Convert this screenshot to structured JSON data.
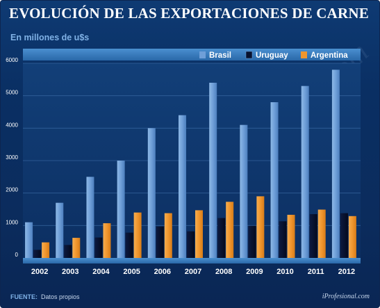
{
  "header": {
    "title": "EVOLUCIÓN DE LAS EXPORTACIONES DE CARNE",
    "subtitle": "En millones de u$s"
  },
  "footer": {
    "source_label": "FUENTE:",
    "source_text": "Datos propios",
    "brand": "iProfesional.com"
  },
  "watermark": "iProfesional.com",
  "colors": {
    "background": "#0b2c5d",
    "brasil": "#6f9fd8",
    "uruguay": "#07112e",
    "argentina": "#f0962e",
    "legend_bar": "#2a6cae",
    "axis_band": "#3a7fc0"
  },
  "chart_data": {
    "type": "bar",
    "title": "EVOLUCIÓN DE LAS EXPORTACIONES DE CARNE",
    "subtitle": "En millones de u$s",
    "categories": [
      "2002",
      "2003",
      "2004",
      "2005",
      "2006",
      "2007",
      "2008",
      "2009",
      "2010",
      "2011",
      "2012"
    ],
    "series": [
      {
        "name": "Brasil",
        "color": "#6f9fd8",
        "values": [
          1100,
          1700,
          2500,
          3000,
          4000,
          4400,
          5400,
          4100,
          4800,
          5300,
          5800
        ]
      },
      {
        "name": "Uruguay",
        "color": "#07112e",
        "values": [
          250,
          400,
          630,
          780,
          970,
          820,
          1230,
          990,
          1130,
          1350,
          1380
        ]
      },
      {
        "name": "Argentina",
        "color": "#f0962e",
        "values": [
          480,
          620,
          1070,
          1400,
          1380,
          1470,
          1730,
          1900,
          1330,
          1490,
          1290
        ]
      }
    ],
    "yticks": [
      0,
      1000,
      2000,
      3000,
      4000,
      5000,
      6000
    ],
    "ylim": [
      0,
      6000
    ],
    "xlabel": "",
    "ylabel": "",
    "grid": true,
    "legend_position": "top-right"
  }
}
